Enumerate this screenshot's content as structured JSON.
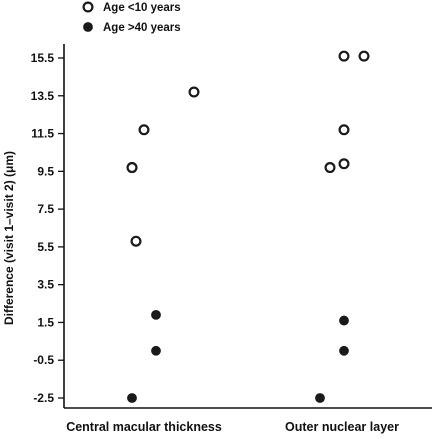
{
  "chart_data": {
    "type": "scatter",
    "ylabel": "Difference (visit 1–visit 2) (μm)",
    "xlabel": "",
    "categories": [
      "Central macular thickness",
      "Outer nuclear layer"
    ],
    "ylim": [
      -2.5,
      15.5
    ],
    "yticks": [
      "15.5",
      "13.5",
      "11.5",
      "9.5",
      "7.5",
      "5.5",
      "3.5",
      "1.5",
      "-0.5",
      "-2.5"
    ],
    "grid": false,
    "legend_position": "top-left",
    "series": [
      {
        "name": "Age <10 years",
        "marker": "open-circle",
        "color": "#1a1a1a",
        "points": [
          {
            "category": "Central macular thickness",
            "y": 9.7
          },
          {
            "category": "Central macular thickness",
            "y": 9.7
          },
          {
            "category": "Central macular thickness",
            "y": 11.7
          },
          {
            "category": "Central macular thickness",
            "y": 13.7
          },
          {
            "category": "Central macular thickness",
            "y": 5.8
          },
          {
            "category": "Outer nuclear layer",
            "y": 15.6
          },
          {
            "category": "Outer nuclear layer",
            "y": 15.6
          },
          {
            "category": "Outer nuclear layer",
            "y": 11.7
          },
          {
            "category": "Outer nuclear layer",
            "y": 9.7
          },
          {
            "category": "Outer nuclear layer",
            "y": 9.9
          }
        ]
      },
      {
        "name": "Age >40 years",
        "marker": "filled-circle",
        "color": "#1a1a1a",
        "points": [
          {
            "category": "Central macular thickness",
            "y": 1.9
          },
          {
            "category": "Central macular thickness",
            "y": 0.0
          },
          {
            "category": "Central macular thickness",
            "y": -2.5
          },
          {
            "category": "Outer nuclear layer",
            "y": 1.6
          },
          {
            "category": "Outer nuclear layer",
            "y": 0.0
          },
          {
            "category": "Outer nuclear layer",
            "y": -2.5
          }
        ]
      }
    ]
  }
}
